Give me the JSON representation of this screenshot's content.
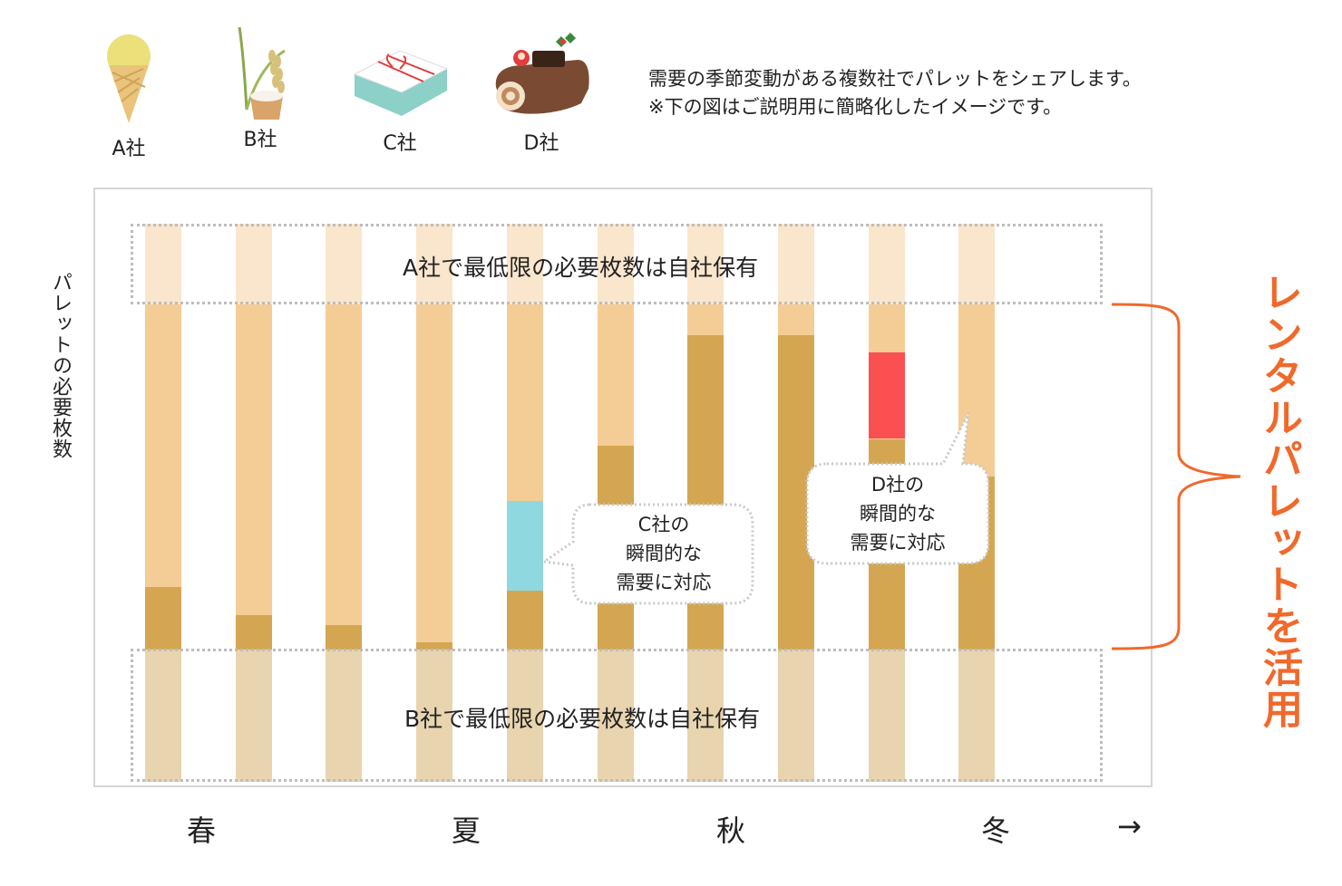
{
  "companies": [
    {
      "label": "A社",
      "icon": "ice-cream-icon"
    },
    {
      "label": "B社",
      "icon": "rice-icon"
    },
    {
      "label": "C社",
      "icon": "gift-box-icon"
    },
    {
      "label": "D社",
      "icon": "christmas-cake-icon"
    }
  ],
  "description": {
    "line1": "需要の季節変動がある複数社でパレットをシェアします。",
    "line2": "※下の図はご説明用に簡略化したイメージです。"
  },
  "y_axis_label": "パレットの必要枚数",
  "zones": {
    "top": "A社で最低限の必要枚数は自社保有",
    "bottom": "B社で最低限の必要枚数は自社保有"
  },
  "callouts": {
    "c": "C社の\n瞬間的な\n需要に対応",
    "d": "D社の\n瞬間的な\n需要に対応"
  },
  "seasons": [
    "春",
    "夏",
    "秋",
    "冬"
  ],
  "time_arrow": "→",
  "rental_label": "レンタルパレットを活用",
  "colors": {
    "top_zone": "#fae6cc",
    "rental_light": "#f4cd96",
    "rental_dark": "#d4a651",
    "bottom_zone": "#e8d4ae",
    "c_spike": "#8fd8e0",
    "d_spike": "#fb5052",
    "accent": "#f0692b"
  },
  "chart_data": {
    "type": "bar",
    "stack_units": "fraction of rental band filled by dark segment",
    "columns": [
      {
        "dark_fraction": 0.18,
        "spike": null
      },
      {
        "dark_fraction": 0.1,
        "spike": null
      },
      {
        "dark_fraction": 0.07,
        "spike": null
      },
      {
        "dark_fraction": 0.02,
        "spike": null
      },
      {
        "dark_fraction": 0.17,
        "spike": "c",
        "spike_top_fraction": 0.43,
        "spike_height_fraction": 0.26
      },
      {
        "dark_fraction": 0.59,
        "spike": null
      },
      {
        "dark_fraction": 0.91,
        "spike": null
      },
      {
        "dark_fraction": 0.91,
        "spike": null
      },
      {
        "dark_fraction": 0.61,
        "spike": "d",
        "spike_top_fraction": 0.86,
        "spike_height_fraction": 0.25
      },
      {
        "dark_fraction": 0.5,
        "spike": null
      }
    ]
  }
}
